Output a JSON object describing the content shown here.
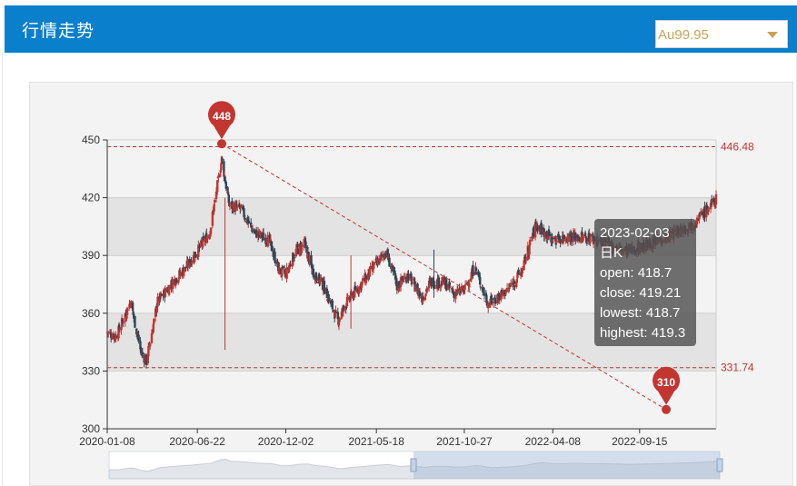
{
  "header": {
    "title": "行情走势"
  },
  "select": {
    "value": "Au99.95"
  },
  "colors": {
    "up": "#c23531",
    "down": "#2f4554",
    "header": "#0a7fcc",
    "markline": "#c23531"
  },
  "tooltip": {
    "date": "2023-02-03",
    "series": "日K",
    "open": "open: 418.7",
    "close": "close: 419.21",
    "lowest": "lowest: 418.7",
    "highest": "highest: 419.3"
  },
  "chart_data": {
    "type": "candlestick",
    "y_ticks": [
      "300",
      "330",
      "360",
      "390",
      "420",
      "450"
    ],
    "ylim": [
      300,
      450
    ],
    "x_ticks": [
      "2020-01-08",
      "2020-06-22",
      "2020-12-02",
      "2021-05-18",
      "2021-10-27",
      "2022-04-08",
      "2022-09-15"
    ],
    "mark_points": [
      {
        "label": "448",
        "date": "2020-08-06",
        "value": 448
      },
      {
        "label": "310",
        "date": "2022-11-03",
        "value": 310
      }
    ],
    "mark_lines": [
      {
        "label": "446.48",
        "value": 446.48
      },
      {
        "label": "331.74",
        "value": 331.74
      }
    ],
    "anchor_closes": [
      [
        "2020-01-08",
        350
      ],
      [
        "2020-01-25",
        348
      ],
      [
        "2020-02-20",
        366
      ],
      [
        "2020-03-10",
        340
      ],
      [
        "2020-03-20",
        335
      ],
      [
        "2020-04-10",
        366
      ],
      [
        "2020-05-10",
        377
      ],
      [
        "2020-05-30",
        383
      ],
      [
        "2020-06-22",
        392
      ],
      [
        "2020-07-15",
        402
      ],
      [
        "2020-08-06",
        440
      ],
      [
        "2020-08-20",
        416
      ],
      [
        "2020-09-10",
        414
      ],
      [
        "2020-10-05",
        402
      ],
      [
        "2020-11-01",
        398
      ],
      [
        "2020-11-20",
        382
      ],
      [
        "2020-12-02",
        380
      ],
      [
        "2020-12-20",
        392
      ],
      [
        "2021-01-06",
        396
      ],
      [
        "2021-01-20",
        382
      ],
      [
        "2021-02-10",
        374
      ],
      [
        "2021-03-08",
        356
      ],
      [
        "2021-03-25",
        366
      ],
      [
        "2021-04-20",
        375
      ],
      [
        "2021-05-18",
        386
      ],
      [
        "2021-06-05",
        392
      ],
      [
        "2021-06-25",
        374
      ],
      [
        "2021-07-15",
        380
      ],
      [
        "2021-08-10",
        368
      ],
      [
        "2021-08-25",
        376
      ],
      [
        "2021-09-20",
        376
      ],
      [
        "2021-10-10",
        370
      ],
      [
        "2021-10-27",
        372
      ],
      [
        "2021-11-15",
        384
      ],
      [
        "2021-12-10",
        365
      ],
      [
        "2022-01-15",
        372
      ],
      [
        "2022-02-10",
        382
      ],
      [
        "2022-03-08",
        406
      ],
      [
        "2022-04-08",
        398
      ],
      [
        "2022-05-10",
        400
      ],
      [
        "2022-06-20",
        399
      ],
      [
        "2022-07-25",
        395
      ],
      [
        "2022-08-20",
        392
      ],
      [
        "2022-09-15",
        394
      ],
      [
        "2022-10-20",
        398
      ],
      [
        "2022-11-20",
        402
      ],
      [
        "2022-12-20",
        406
      ],
      [
        "2023-01-15",
        413
      ],
      [
        "2023-02-03",
        419
      ]
    ]
  }
}
